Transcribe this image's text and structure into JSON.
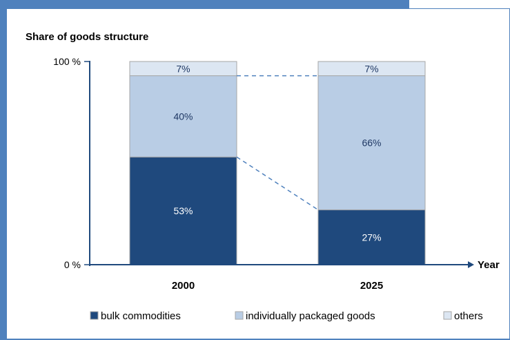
{
  "chart_data": {
    "type": "bar",
    "stacked": true,
    "title": "Share of goods structure",
    "xlabel": "Year",
    "ylabel": "",
    "ylim": [
      0,
      100
    ],
    "yticks": [
      {
        "value": 0,
        "label": "0 %"
      },
      {
        "value": 100,
        "label": "100 %"
      }
    ],
    "categories": [
      "2000",
      "2025"
    ],
    "series": [
      {
        "name": "bulk commodities",
        "values": [
          53,
          27
        ],
        "labels": [
          "53%",
          "27%"
        ],
        "color": "#1f497d",
        "text_color": "#ffffff"
      },
      {
        "name": "individually packaged goods",
        "values": [
          40,
          66
        ],
        "labels": [
          "40%",
          "66%"
        ],
        "color": "#b9cde5",
        "text_color": "#1f3864"
      },
      {
        "name": "others",
        "values": [
          7,
          7
        ],
        "labels": [
          "7%",
          "7%"
        ],
        "color": "#dce6f2",
        "text_color": "#1f3864"
      }
    ],
    "connector_lines": "dashed",
    "legend_position": "bottom",
    "grid": false
  }
}
